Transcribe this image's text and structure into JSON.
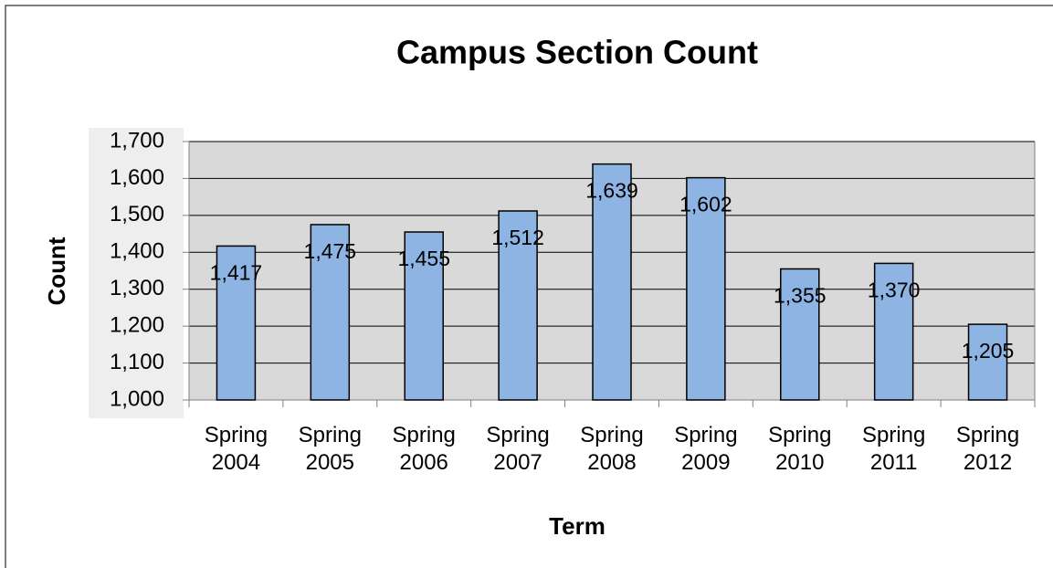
{
  "chart_data": {
    "type": "bar",
    "title": "Campus Section Count",
    "x_label": "Term",
    "y_label": "Count",
    "categories": [
      "Spring 2004",
      "Spring 2005",
      "Spring 2006",
      "Spring 2007",
      "Spring 2008",
      "Spring 2009",
      "Spring 2010",
      "Spring 2011",
      "Spring 2012"
    ],
    "values": [
      1417,
      1475,
      1455,
      1512,
      1639,
      1602,
      1355,
      1370,
      1205
    ],
    "value_labels": [
      "1,417",
      "1,475",
      "1,455",
      "1,512",
      "1,639",
      "1,602",
      "1,355",
      "1,370",
      "1,205"
    ],
    "color": "#8eb4e3",
    "ylim": [
      1000,
      1700
    ],
    "yticks": [
      {
        "value": 1000,
        "label": "1,000"
      },
      {
        "value": 1100,
        "label": "1,100"
      },
      {
        "value": 1200,
        "label": "1,200"
      },
      {
        "value": 1300,
        "label": "1,300"
      },
      {
        "value": 1400,
        "label": "1,400"
      },
      {
        "value": 1500,
        "label": "1,500"
      },
      {
        "value": 1600,
        "label": "1,600"
      },
      {
        "value": 1700,
        "label": "1,700"
      }
    ],
    "grid": true
  }
}
